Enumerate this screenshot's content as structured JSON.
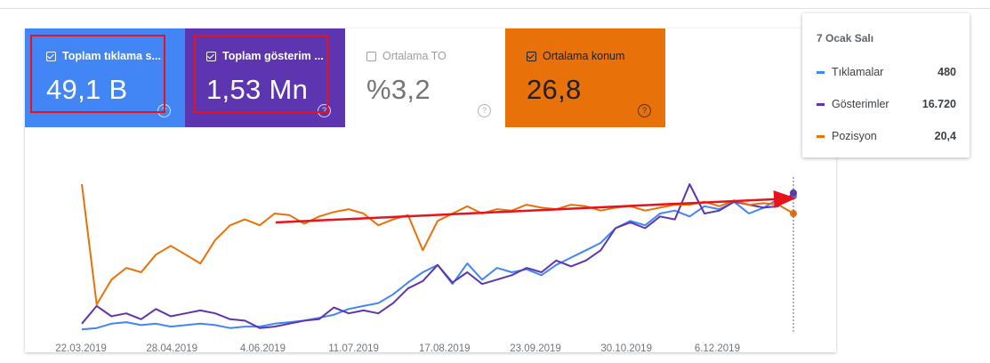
{
  "metrics": {
    "clicks": {
      "label": "Toplam tıklama s...",
      "value": "49,1 B",
      "checked": true,
      "color": "#4285f4"
    },
    "impressions": {
      "label": "Toplam gösterim ...",
      "value": "1,53 Mn",
      "checked": true,
      "color": "#5e35b1"
    },
    "ctr": {
      "label": "Ortalama TO",
      "value": "%3,2",
      "checked": false,
      "color": "#ffffff"
    },
    "position": {
      "label": "Ortalama konum",
      "value": "26,8",
      "checked": true,
      "color": "#e8710a"
    }
  },
  "tooltip": {
    "date": "7 Ocak Salı",
    "rows": [
      {
        "name": "Tıklamalar",
        "value": "480",
        "color": "#4285f4"
      },
      {
        "name": "Gösterimler",
        "value": "16.720",
        "color": "#5e35b1"
      },
      {
        "name": "Pozisyon",
        "value": "20,4",
        "color": "#e8710a"
      }
    ]
  },
  "chart_data": {
    "type": "line",
    "x_ticks": [
      "22.03.2019",
      "28.04.2019",
      "4.06.2019",
      "11.07.2019",
      "17.08.2019",
      "23.09.2019",
      "30.10.2019",
      "6.12.2019"
    ],
    "series": [
      {
        "name": "Tıklamalar",
        "color": "#4285f4",
        "values": [
          0.01,
          0.02,
          0.05,
          0.06,
          0.04,
          0.05,
          0.03,
          0.04,
          0.05,
          0.04,
          0.02,
          0.03,
          0.03,
          0.05,
          0.06,
          0.07,
          0.09,
          0.11,
          0.15,
          0.17,
          0.19,
          0.25,
          0.33,
          0.4,
          0.45,
          0.32,
          0.46,
          0.35,
          0.43,
          0.4,
          0.42,
          0.38,
          0.45,
          0.5,
          0.55,
          0.6,
          0.7,
          0.75,
          0.72,
          0.8,
          0.82,
          0.78,
          0.85,
          0.83,
          0.88,
          0.8,
          0.84,
          0.9,
          0.92
        ]
      },
      {
        "name": "Gösterimler",
        "color": "#5e35b1",
        "values": [
          0.05,
          0.17,
          0.1,
          0.12,
          0.08,
          0.15,
          0.1,
          0.12,
          0.14,
          0.12,
          0.08,
          0.07,
          0.02,
          0.03,
          0.05,
          0.07,
          0.08,
          0.16,
          0.12,
          0.14,
          0.12,
          0.19,
          0.29,
          0.34,
          0.45,
          0.33,
          0.4,
          0.32,
          0.35,
          0.38,
          0.43,
          0.4,
          0.48,
          0.44,
          0.48,
          0.55,
          0.7,
          0.74,
          0.7,
          0.78,
          0.76,
          1.0,
          0.8,
          0.82,
          0.88,
          0.86,
          0.84,
          0.85,
          0.94
        ]
      },
      {
        "name": "Pozisyon",
        "color": "#e8710a",
        "values": [
          1.0,
          0.18,
          0.35,
          0.43,
          0.4,
          0.52,
          0.58,
          0.52,
          0.46,
          0.62,
          0.72,
          0.76,
          0.72,
          0.8,
          0.79,
          0.73,
          0.78,
          0.81,
          0.83,
          0.8,
          0.72,
          0.76,
          0.79,
          0.55,
          0.75,
          0.8,
          0.85,
          0.8,
          0.83,
          0.82,
          0.86,
          0.84,
          0.83,
          0.86,
          0.85,
          0.82,
          0.84,
          0.85,
          0.82,
          0.84,
          0.86,
          0.86,
          0.88,
          0.85,
          0.89,
          0.86,
          0.87,
          0.86,
          0.8
        ]
      }
    ]
  }
}
